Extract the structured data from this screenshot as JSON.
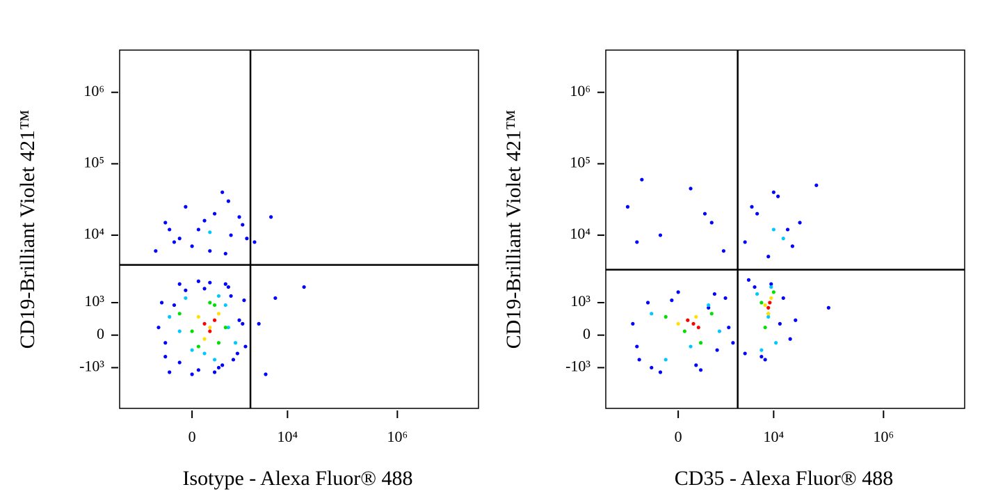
{
  "chart_data": [
    {
      "type": "scatter",
      "scale": "biexponential",
      "x_label": "Isotype - Alexa Fluor® 488",
      "y_label": "CD19-Brilliant Violet 421™",
      "xlim": [
        -3800,
        30000000
      ],
      "ylim": [
        -4200,
        3900000
      ],
      "xticks": [
        0,
        {
          "value": 10000,
          "label": "10⁴"
        },
        {
          "value": 1000000,
          "label": "10⁶"
        }
      ],
      "yticks": [
        {
          "value": -1000,
          "label": "-10³"
        },
        0,
        {
          "value": 1000,
          "label": "10³"
        },
        {
          "value": 10000,
          "label": "10⁴"
        },
        {
          "value": 100000,
          "label": "10⁵"
        },
        {
          "value": 1000000,
          "label": "10⁶"
        }
      ],
      "gates": {
        "x": 2100,
        "y": 3800
      },
      "series": [
        {
          "color": "#0000ff",
          "x": [
            -700,
            -500,
            -300,
            -100,
            100,
            300,
            600,
            900,
            1300,
            1700,
            -600,
            -400,
            -200,
            0,
            200,
            500,
            800,
            1200,
            1600,
            -500,
            -200,
            100,
            400,
            700,
            1000,
            1500,
            3000,
            6000,
            20000,
            4000,
            -500,
            -300,
            -100,
            100,
            300,
            600,
            900,
            1300,
            1800,
            -400,
            0,
            400,
            800,
            1500,
            -200,
            200,
            700,
            2500,
            5000,
            -800
          ],
          "y": [
            200,
            -600,
            900,
            1600,
            -1100,
            2100,
            -900,
            1300,
            400,
            -300,
            1000,
            -1200,
            2000,
            -1300,
            1700,
            -1000,
            1800,
            -500,
            1100,
            -200,
            -800,
            2200,
            -1200,
            2000,
            -700,
            300,
            300,
            1200,
            1800,
            -1300,
            15000,
            8000,
            25000,
            12000,
            6000,
            40000,
            10000,
            18000,
            9000,
            12000,
            7000,
            20000,
            30000,
            14000,
            9000,
            16000,
            5500,
            8000,
            18000,
            6000
          ]
        },
        {
          "color": "#00c8ff",
          "x": [
            -400,
            -100,
            200,
            500,
            800,
            1100,
            0,
            400,
            -200,
            700,
            300
          ],
          "y": [
            500,
            1200,
            -500,
            1300,
            200,
            -200,
            -400,
            -700,
            100,
            900,
            11000
          ]
        },
        {
          "color": "#00e000",
          "x": [
            -200,
            100,
            400,
            700,
            0,
            300,
            500
          ],
          "y": [
            600,
            -300,
            900,
            200,
            100,
            1000,
            -200
          ]
        },
        {
          "color": "#ffe000",
          "x": [
            100,
            300,
            500,
            200
          ],
          "y": [
            500,
            200,
            600,
            -100
          ]
        },
        {
          "color": "#ff0000",
          "x": [
            200,
            400,
            300
          ],
          "y": [
            300,
            400,
            100
          ]
        }
      ]
    },
    {
      "type": "scatter",
      "scale": "biexponential",
      "x_label": "CD35 - Alexa Fluor® 488",
      "y_label": "CD19-Brilliant Violet 421™",
      "xlim": [
        -3800,
        30000000
      ],
      "ylim": [
        -4200,
        3900000
      ],
      "xticks": [
        0,
        {
          "value": 10000,
          "label": "10⁴"
        },
        {
          "value": 1000000,
          "label": "10⁶"
        }
      ],
      "yticks": [
        {
          "value": -1000,
          "label": "-10³"
        },
        0,
        {
          "value": 1000,
          "label": "10³"
        },
        {
          "value": 10000,
          "label": "10⁴"
        },
        {
          "value": 100000,
          "label": "10⁵"
        },
        {
          "value": 1000000,
          "label": "10⁶"
        }
      ],
      "gates": {
        "x": 2200,
        "y": 3250
      },
      "series": [
        {
          "color": "#0000ff",
          "x": [
            -1200,
            -900,
            -600,
            -300,
            0,
            300,
            600,
            900,
            1300,
            1800,
            -1000,
            -500,
            -100,
            400,
            800,
            1500,
            3000,
            4500,
            6000,
            9000,
            13000,
            20000,
            3500,
            7000,
            15000,
            25000,
            3000,
            5000,
            8000,
            12000,
            18000,
            30000,
            4000,
            10000,
            22000,
            60000,
            -1500,
            -800,
            -300,
            200,
            700,
            1200,
            500,
            -1000,
            100000
          ],
          "y": [
            300,
            -700,
            1000,
            -1200,
            1500,
            -900,
            800,
            -400,
            1200,
            -200,
            -300,
            -1000,
            1100,
            -1100,
            1400,
            200,
            -500,
            1800,
            -600,
            2000,
            300,
            -100,
            2300,
            -700,
            1200,
            400,
            8000,
            20000,
            5000,
            35000,
            12000,
            15000,
            25000,
            40000,
            7000,
            50000,
            25000,
            60000,
            10000,
            45000,
            15000,
            6000,
            20000,
            8000,
            800
          ]
        },
        {
          "color": "#00c8ff",
          "x": [
            -500,
            200,
            600,
            -200,
            1000,
            5000,
            8000,
            11000,
            6000,
            9000,
            10000,
            15000
          ],
          "y": [
            600,
            -300,
            900,
            -700,
            100,
            1400,
            500,
            -200,
            -400,
            1800,
            12000,
            9000
          ]
        },
        {
          "color": "#00e000",
          "x": [
            -200,
            100,
            400,
            700,
            6000,
            8000,
            10000,
            7000
          ],
          "y": [
            500,
            100,
            -200,
            600,
            1000,
            600,
            1500,
            200
          ]
        },
        {
          "color": "#ffe000",
          "x": [
            0,
            300,
            7000,
            9000,
            8000
          ],
          "y": [
            300,
            500,
            900,
            1200,
            600
          ]
        },
        {
          "color": "#ff0000",
          "x": [
            150,
            350,
            250,
            8000,
            8500
          ],
          "y": [
            400,
            200,
            300,
            800,
            1000
          ]
        }
      ]
    }
  ]
}
